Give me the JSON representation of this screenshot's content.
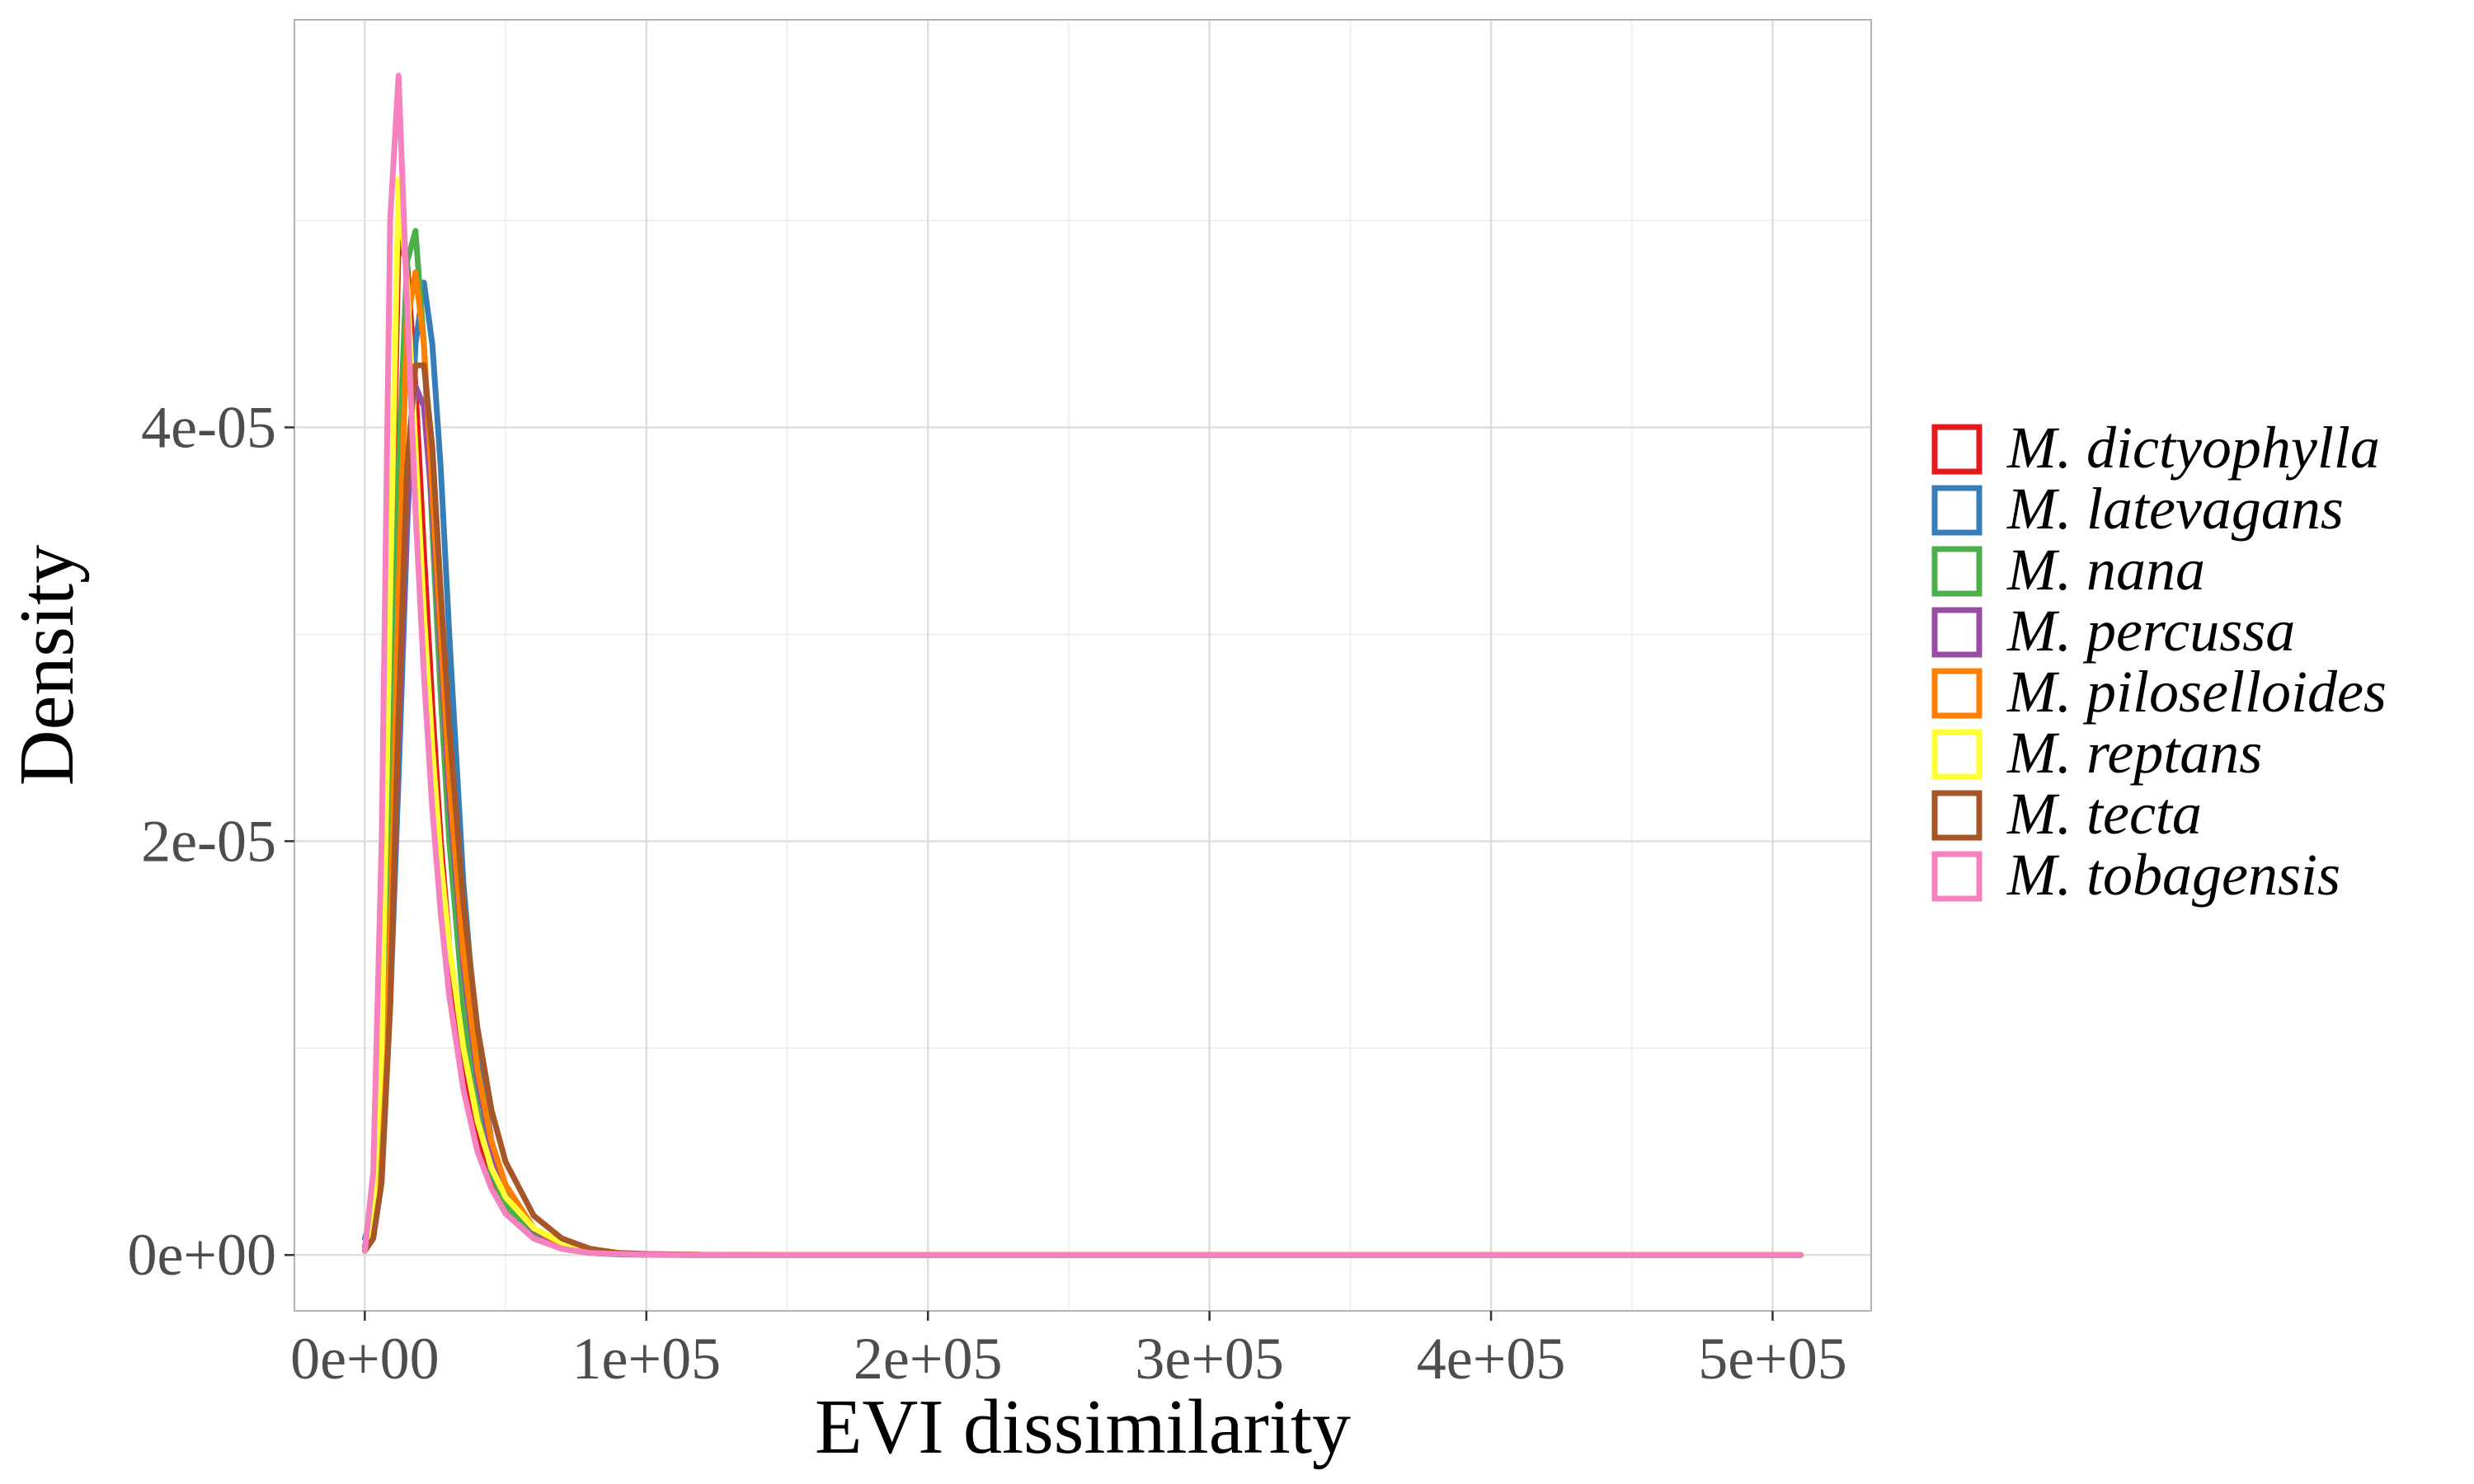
{
  "chart_data": {
    "type": "line",
    "title": "",
    "xlabel": "EVI dissimilarity",
    "ylabel": "Density",
    "xlim": [
      -25000,
      535000
    ],
    "ylim": [
      -2.7e-06,
      5.97e-05
    ],
    "xticks": [
      0,
      100000,
      200000,
      300000,
      400000,
      500000
    ],
    "xtick_labels": [
      "0e+00",
      "1e+05",
      "2e+05",
      "3e+05",
      "4e+05",
      "5e+05"
    ],
    "yticks": [
      0,
      2e-05,
      4e-05
    ],
    "ytick_labels": [
      "0e+00",
      "2e-05",
      "4e-05"
    ],
    "grid": true,
    "legend_position": "right",
    "x": [
      0,
      3000,
      6000,
      9000,
      12000,
      15000,
      18000,
      21000,
      24000,
      27000,
      30000,
      35000,
      40000,
      45000,
      50000,
      60000,
      70000,
      80000,
      90000,
      100000,
      120000,
      150000,
      200000,
      300000,
      400000,
      510000
    ],
    "series": [
      {
        "name": "M. dictyophylla",
        "color": "#e41a1c",
        "values": [
          4e-07,
          2.5e-06,
          9e-06,
          3e-05,
          4.9e-05,
          4.8e-05,
          4.2e-05,
          3.4e-05,
          2.65e-05,
          2e-05,
          1.5e-05,
          9e-06,
          5.5e-06,
          3.3e-06,
          2e-06,
          8e-07,
          3e-07,
          1e-07,
          5e-08,
          2e-08,
          0,
          0,
          0,
          0,
          0,
          0
        ]
      },
      {
        "name": "M. latevagans",
        "color": "#377eb8",
        "values": [
          8e-07,
          2e-06,
          5e-06,
          1.2e-05,
          2.3e-05,
          3.5e-05,
          4.4e-05,
          4.7e-05,
          4.4e-05,
          3.8e-05,
          3e-05,
          1.8e-05,
          1e-05,
          5.5e-06,
          3e-06,
          1e-06,
          3e-07,
          1e-07,
          3e-08,
          1e-08,
          0,
          0,
          0,
          0,
          0,
          0
        ]
      },
      {
        "name": "M. nana",
        "color": "#4daf4a",
        "values": [
          2e-07,
          1e-06,
          6e-06,
          2e-05,
          3.8e-05,
          4.8e-05,
          4.95e-05,
          4.4e-05,
          3.5e-05,
          2.7e-05,
          2e-05,
          1.2e-05,
          7e-06,
          4e-06,
          2.4e-06,
          9e-07,
          4e-07,
          1e-07,
          5e-08,
          2e-08,
          0,
          0,
          0,
          0,
          0,
          0
        ]
      },
      {
        "name": "M. percussa",
        "color": "#984ea3",
        "values": [
          2e-07,
          1e-06,
          4e-06,
          1.2e-05,
          2.5e-05,
          3.6e-05,
          4.2e-05,
          4.1e-05,
          3.6e-05,
          2.9e-05,
          2.2e-05,
          1.4e-05,
          8.5e-06,
          5e-06,
          3e-06,
          1.2e-06,
          5e-07,
          2e-07,
          1e-07,
          4e-08,
          1e-08,
          0,
          0,
          0,
          0,
          0
        ]
      },
      {
        "name": "M. piloselloides",
        "color": "#ff7f00",
        "values": [
          2e-07,
          8e-07,
          4e-06,
          1.5e-05,
          3.2e-05,
          4.5e-05,
          4.75e-05,
          4.4e-05,
          3.7e-05,
          3e-05,
          2.3e-05,
          1.45e-05,
          9e-06,
          5.5e-06,
          3.4e-06,
          1.3e-06,
          5e-07,
          2e-07,
          1e-07,
          4e-08,
          1e-08,
          0,
          0,
          0,
          0,
          0
        ]
      },
      {
        "name": "M. reptans",
        "color": "#ffff33",
        "values": [
          3e-07,
          2e-06,
          1e-05,
          3.2e-05,
          5.2e-05,
          4.7e-05,
          3.9e-05,
          3.1e-05,
          2.45e-05,
          1.9e-05,
          1.5e-05,
          1e-05,
          6.5e-06,
          4.2e-06,
          2.8e-06,
          1.3e-06,
          6e-07,
          3e-07,
          1e-07,
          5e-08,
          1e-08,
          0,
          0,
          0,
          0,
          0
        ]
      },
      {
        "name": "M. tecta",
        "color": "#a65628",
        "values": [
          2e-07,
          8e-07,
          3.5e-06,
          1.2e-05,
          2.6e-05,
          3.8e-05,
          4.3e-05,
          4.3e-05,
          3.9e-05,
          3.2e-05,
          2.55e-05,
          1.7e-05,
          1.1e-05,
          7e-06,
          4.5e-06,
          1.9e-06,
          8e-07,
          3e-07,
          1e-07,
          5e-08,
          1e-08,
          0,
          0,
          0,
          0,
          0
        ]
      },
      {
        "name": "M. tobagensis",
        "color": "#f781bf",
        "values": [
          2e-07,
          4e-06,
          2e-05,
          5e-05,
          5.7e-05,
          4.6e-05,
          3.6e-05,
          2.8e-05,
          2.15e-05,
          1.65e-05,
          1.25e-05,
          8e-06,
          5e-06,
          3.2e-06,
          2e-06,
          8e-07,
          3e-07,
          1e-07,
          5e-08,
          2e-08,
          0,
          0,
          0,
          0,
          0,
          0
        ]
      }
    ]
  }
}
